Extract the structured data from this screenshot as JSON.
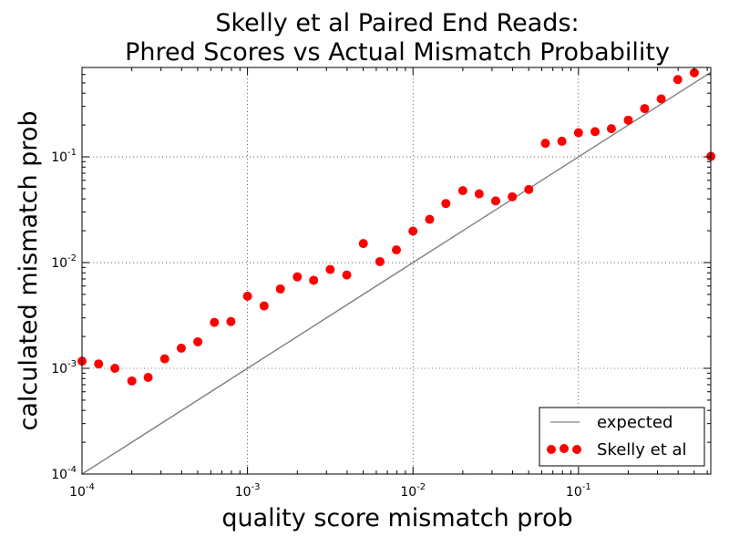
{
  "chart_data": {
    "type": "scatter",
    "title": [
      "Skelly et al Paired End Reads:",
      "Phred Scores vs Actual Mismatch Probability"
    ],
    "xlabel": "quality score mismatch prob",
    "ylabel": "calculated mismatch prob",
    "xscale": "log",
    "yscale": "log",
    "xlim": [
      0.0001,
      0.63
    ],
    "ylim": [
      0.0001,
      0.7
    ],
    "x_ticks": [
      {
        "base": "10",
        "exp": "-4",
        "value": 0.0001
      },
      {
        "base": "10",
        "exp": "-3",
        "value": 0.001
      },
      {
        "base": "10",
        "exp": "-2",
        "value": 0.01
      },
      {
        "base": "10",
        "exp": "-1",
        "value": 0.1
      }
    ],
    "y_ticks": [
      {
        "base": "10",
        "exp": "-4",
        "value": 0.0001
      },
      {
        "base": "10",
        "exp": "-3",
        "value": 0.001
      },
      {
        "base": "10",
        "exp": "-2",
        "value": 0.01
      },
      {
        "base": "10",
        "exp": "-1",
        "value": 0.1
      }
    ],
    "grid": true,
    "legend_position": "lower-right",
    "series": [
      {
        "name": "expected",
        "kind": "line",
        "color": "#808080",
        "x": [
          0.0001,
          0.63
        ],
        "y": [
          0.0001,
          0.63
        ]
      },
      {
        "name": "Skelly et al",
        "kind": "scatter",
        "color": "#ff0000",
        "x": [
          0.0001,
          0.000126,
          0.000158,
          0.0002,
          0.000251,
          0.000316,
          0.000398,
          0.000501,
          0.000631,
          0.000794,
          0.001,
          0.00126,
          0.00158,
          0.002,
          0.00251,
          0.00316,
          0.00398,
          0.00501,
          0.00631,
          0.00794,
          0.01,
          0.0126,
          0.0158,
          0.02,
          0.0251,
          0.0316,
          0.0398,
          0.0501,
          0.0631,
          0.0794,
          0.1,
          0.126,
          0.158,
          0.2,
          0.251,
          0.316,
          0.398,
          0.501,
          0.631
        ],
        "y": [
          0.00117,
          0.0011,
          0.001,
          0.00076,
          0.00082,
          0.00123,
          0.00155,
          0.00178,
          0.00272,
          0.00277,
          0.00481,
          0.00389,
          0.00563,
          0.00733,
          0.0068,
          0.0086,
          0.00763,
          0.01514,
          0.01021,
          0.01318,
          0.01984,
          0.02562,
          0.0362,
          0.04786,
          0.04467,
          0.03828,
          0.04192,
          0.04914,
          0.13428,
          0.14044,
          0.16882,
          0.17318,
          0.18474,
          0.22211,
          0.28576,
          0.35325,
          0.53846,
          0.6237,
          0.10099
        ]
      }
    ]
  }
}
